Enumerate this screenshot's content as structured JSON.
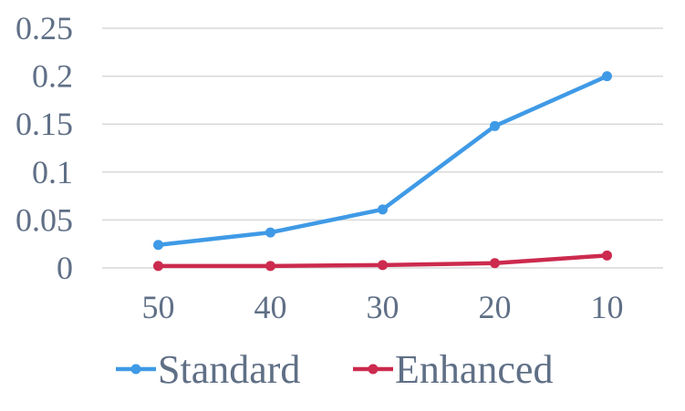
{
  "chart_data": {
    "type": "line",
    "categories": [
      "50",
      "40",
      "30",
      "20",
      "10"
    ],
    "series": [
      {
        "name": "Standard",
        "color": "#3f9ae6",
        "values": [
          0.024,
          0.037,
          0.061,
          0.148,
          0.2
        ]
      },
      {
        "name": "Enhanced",
        "color": "#cc2a4e",
        "values": [
          0.002,
          0.002,
          0.003,
          0.005,
          0.013
        ]
      }
    ],
    "y_ticks": [
      "0",
      "0.05",
      "0.1",
      "0.15",
      "0.2",
      "0.25"
    ],
    "ylim": [
      0,
      0.25
    ],
    "grid": true,
    "legend_position": "bottom",
    "title": "",
    "xlabel": "",
    "ylabel": ""
  }
}
